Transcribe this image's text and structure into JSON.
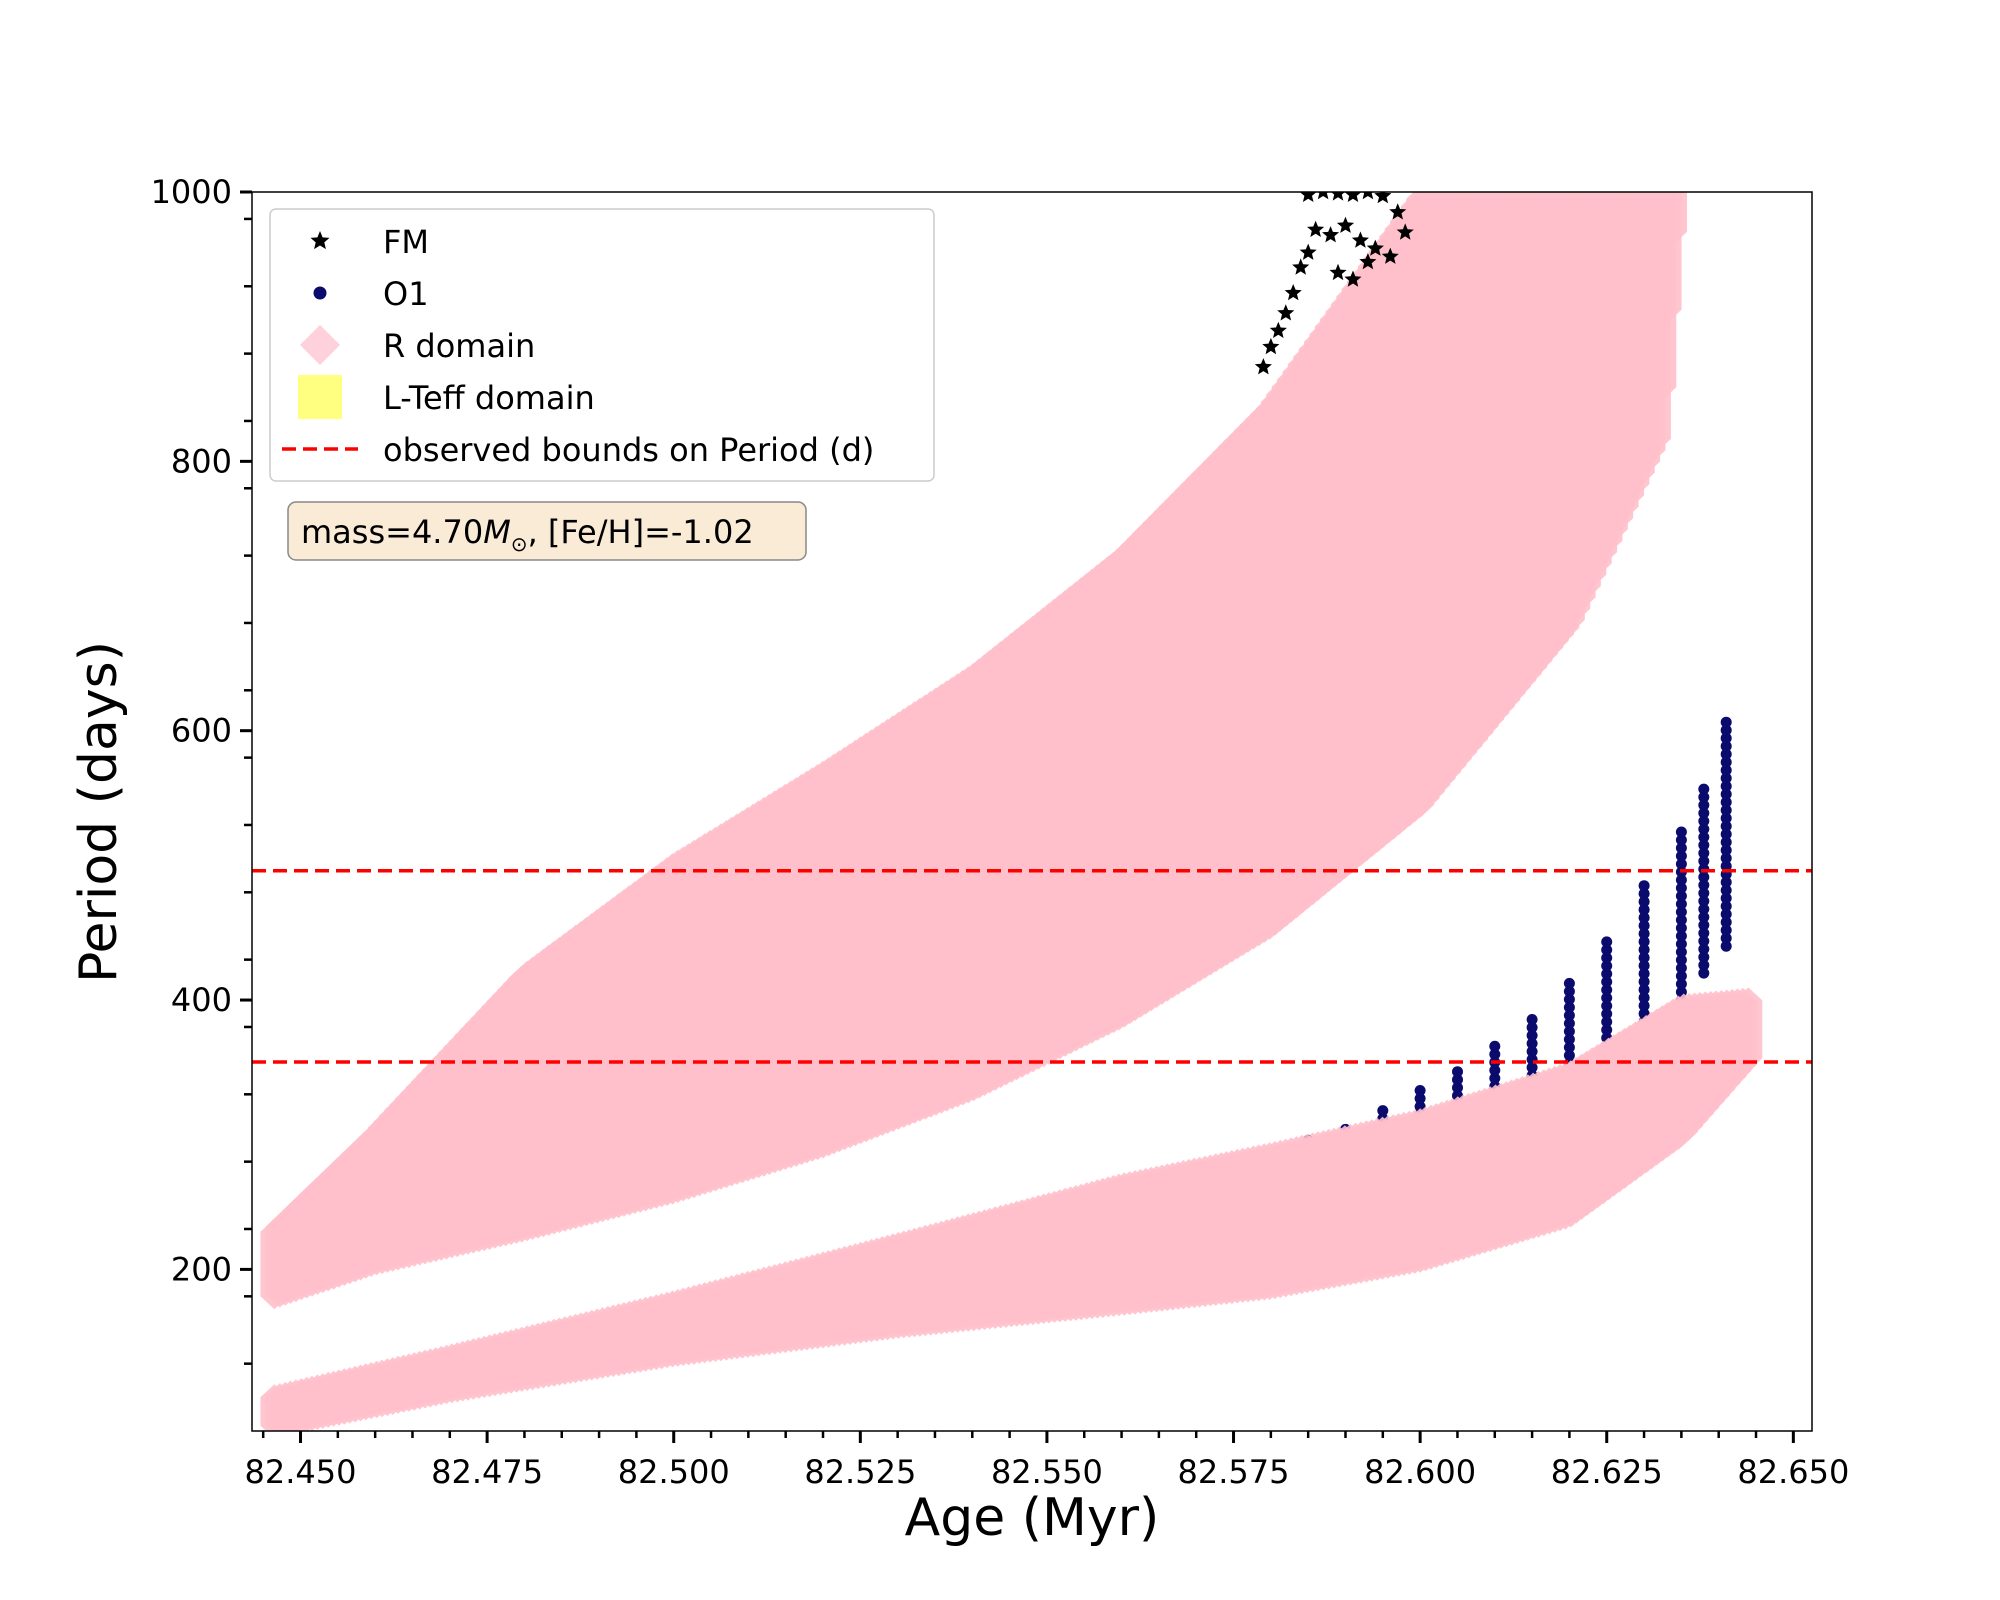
{
  "chart_data": {
    "type": "scatter",
    "title": "",
    "xlabel": "Age (Myr)",
    "ylabel": "Period (days)",
    "xlim": [
      82.4435,
      82.6525
    ],
    "ylim": [
      80,
      1000
    ],
    "x_ticks": [
      82.45,
      82.475,
      82.5,
      82.525,
      82.55,
      82.575,
      82.6,
      82.625,
      82.65
    ],
    "x_tick_labels": [
      "82.450",
      "82.475",
      "82.500",
      "82.525",
      "82.550",
      "82.575",
      "82.600",
      "82.625",
      "82.650"
    ],
    "y_ticks": [
      200,
      400,
      600,
      800,
      1000
    ],
    "y_tick_labels": [
      "200",
      "400",
      "600",
      "800",
      "1000"
    ],
    "grid": false,
    "legend_placement": "upper-left",
    "legend": [
      {
        "label": "FM",
        "marker": "star",
        "color": "#000000"
      },
      {
        "label": "O1",
        "marker": "circle",
        "color": "#0b0b6e"
      },
      {
        "label": "R domain",
        "marker": "diamond",
        "color": "#ffd1dc"
      },
      {
        "label": "L-Teff domain",
        "marker": "square",
        "color": "#ffff80"
      },
      {
        "label": "observed bounds on Period (d)",
        "marker": "dashed-line",
        "color": "#ff0000"
      }
    ],
    "annotation": {
      "prefix": "mass=4.70",
      "mass_symbol": "M",
      "sun_subscript": "⊙",
      "suffix": ", [Fe/H]=-1.02"
    },
    "hlines": [
      {
        "y": 496,
        "color": "#ff0000",
        "style": "dashed"
      },
      {
        "y": 354,
        "color": "#ff0000",
        "style": "dashed"
      }
    ],
    "series": [
      {
        "name": "FM",
        "marker": "star",
        "color": "#000000",
        "x": [
          82.585,
          82.587,
          82.589,
          82.591,
          82.593,
          82.595,
          82.586,
          82.588,
          82.59,
          82.592,
          82.594,
          82.596,
          82.598,
          82.584,
          82.583,
          82.582,
          82.581,
          82.58,
          82.579,
          82.585,
          82.589,
          82.591,
          82.593,
          82.597
        ],
        "y": [
          998,
          1000,
          999,
          998,
          1000,
          997,
          972,
          968,
          975,
          964,
          958,
          952,
          970,
          944,
          925,
          910,
          897,
          885,
          870,
          955,
          940,
          935,
          948,
          985
        ]
      },
      {
        "name": "O1",
        "marker": "circle",
        "color": "#0b0b6e",
        "x": [
          82.575,
          82.58,
          82.585,
          82.59,
          82.595,
          82.6,
          82.605,
          82.61,
          82.615,
          82.62,
          82.625,
          82.63,
          82.635,
          82.638,
          82.641
        ],
        "y_top": [
          282,
          288,
          296,
          306,
          318,
          333,
          350,
          368,
          390,
          415,
          445,
          485,
          530,
          560,
          612
        ],
        "y_bottom": [
          280,
          284,
          290,
          298,
          306,
          315,
          323,
          330,
          338,
          347,
          360,
          378,
          400,
          420,
          440
        ]
      },
      {
        "name": "R domain",
        "marker": "diamond",
        "color": "#ffc0cb",
        "bands": [
          {
            "x_upper": [
              82.4465,
              82.46,
              82.48,
              82.5,
              82.52,
              82.54,
              82.56,
              82.58,
              82.6,
              82.62,
              82.632,
              82.634
            ],
            "y_upper": [
              228,
              300,
              418,
              500,
              568,
              640,
              728,
              840,
              995,
              1000,
              1000,
              1000
            ],
            "x_lower": [
              82.4465,
              82.46,
              82.48,
              82.5,
              82.52,
              82.54,
              82.56,
              82.58,
              82.6,
              82.62,
              82.632,
              82.634
            ],
            "y_lower": [
              180,
              205,
              230,
              258,
              292,
              334,
              388,
              455,
              545,
              680,
              820,
              980
            ]
          },
          {
            "x_upper": [
              82.4465,
              82.47,
              82.5,
              82.53,
              82.56,
              82.58,
              82.6,
              82.62,
              82.635,
              82.6445
            ],
            "y_upper": [
              105,
              135,
              175,
              218,
              262,
              285,
              310,
              345,
              395,
              400
            ],
            "x_lower": [
              82.4465,
              82.47,
              82.5,
              82.53,
              82.56,
              82.58,
              82.6,
              82.62,
              82.635,
              82.6445
            ],
            "y_lower": [
              84,
              110,
              137,
              158,
              175,
              187,
              207,
              240,
              300,
              360
            ]
          }
        ]
      },
      {
        "name": "L-Teff domain",
        "marker": "square",
        "color": "#ffff80",
        "x": [],
        "y": []
      }
    ]
  }
}
